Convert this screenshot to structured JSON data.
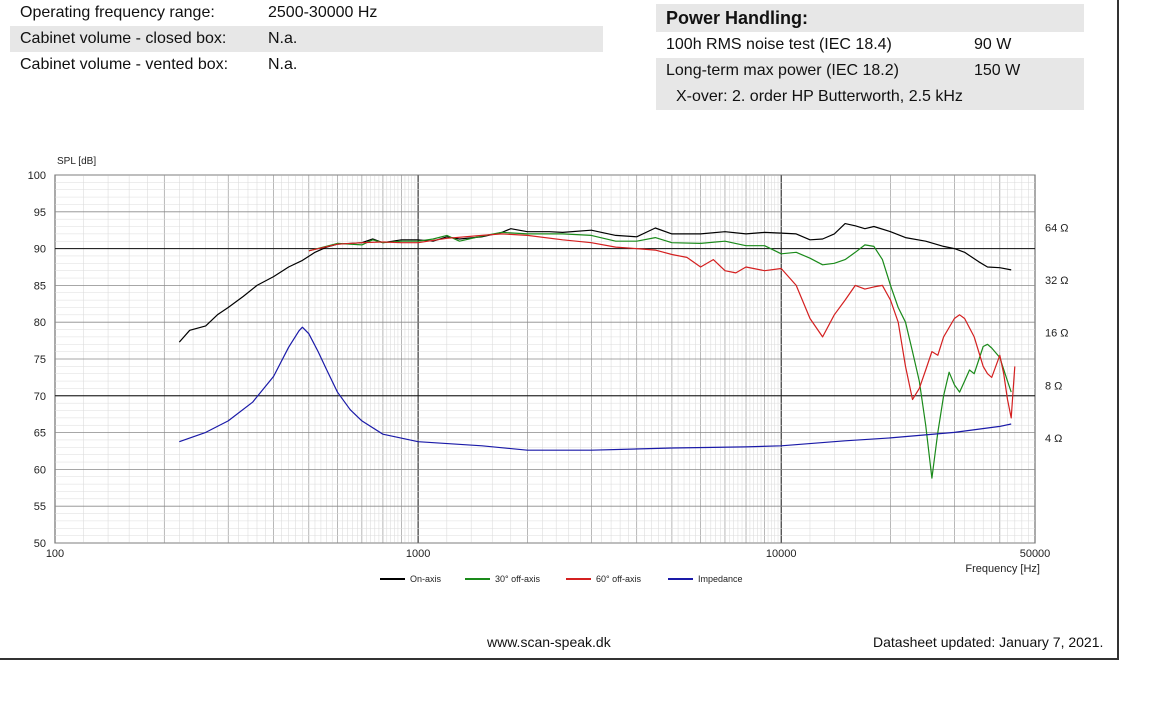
{
  "specs_left": [
    {
      "label": "Operating frequency range:",
      "value": "2500-30000 Hz"
    },
    {
      "label": "Cabinet volume - closed box:",
      "value": "N.a."
    },
    {
      "label": "Cabinet volume - vented box:",
      "value": "N.a."
    }
  ],
  "power_handling": {
    "title": "Power Handling:",
    "rows": [
      {
        "label": "100h RMS noise test (IEC 18.4)",
        "value": "90 W"
      },
      {
        "label": "Long-term max power (IEC 18.2)",
        "value": "150 W"
      }
    ],
    "note": "X-over: 2. order HP Butterworth, 2.5 kHz"
  },
  "chart_data": {
    "type": "line",
    "xscale": "log",
    "xlim": [
      100,
      50000
    ],
    "ylim": [
      50,
      100
    ],
    "y2lim": [
      1,
      128
    ],
    "y2scale": "log2",
    "xlabel": "Frequency [Hz]",
    "ylabel": "SPL [dB]",
    "xticks": [
      "100",
      "1000",
      "10000",
      "50000"
    ],
    "yticks": [
      "50",
      "55",
      "60",
      "65",
      "70",
      "75",
      "80",
      "85",
      "90",
      "95",
      "100"
    ],
    "y2ticks": [
      "4 Ω",
      "8 Ω",
      "16 Ω",
      "32 Ω",
      "64 Ω"
    ],
    "grid": true,
    "legend_position": "bottom",
    "series": [
      {
        "name": "On-axis",
        "color": "#000000",
        "axis": "left",
        "points": [
          [
            220,
            77.3
          ],
          [
            235,
            78.9
          ],
          [
            260,
            79.5
          ],
          [
            280,
            81
          ],
          [
            300,
            82
          ],
          [
            330,
            83.5
          ],
          [
            360,
            85
          ],
          [
            400,
            86.2
          ],
          [
            440,
            87.5
          ],
          [
            480,
            88.4
          ],
          [
            520,
            89.5
          ],
          [
            560,
            90.2
          ],
          [
            600,
            90.6
          ],
          [
            700,
            90.8
          ],
          [
            750,
            91.3
          ],
          [
            800,
            90.8
          ],
          [
            900,
            91.2
          ],
          [
            1000,
            91.2
          ],
          [
            1100,
            91
          ],
          [
            1200,
            91.6
          ],
          [
            1300,
            91.3
          ],
          [
            1500,
            91.6
          ],
          [
            1700,
            92.2
          ],
          [
            1800,
            92.7
          ],
          [
            2000,
            92.3
          ],
          [
            2300,
            92.3
          ],
          [
            2500,
            92.2
          ],
          [
            3000,
            92.5
          ],
          [
            3500,
            91.8
          ],
          [
            4000,
            91.6
          ],
          [
            4500,
            92.8
          ],
          [
            5000,
            92
          ],
          [
            6000,
            92
          ],
          [
            7000,
            92.3
          ],
          [
            8000,
            92
          ],
          [
            9000,
            92.2
          ],
          [
            10000,
            92.1
          ],
          [
            11000,
            92
          ],
          [
            12000,
            91.2
          ],
          [
            13000,
            91.3
          ],
          [
            14000,
            92
          ],
          [
            15000,
            93.4
          ],
          [
            16000,
            93.1
          ],
          [
            17000,
            92.7
          ],
          [
            18000,
            93
          ],
          [
            20000,
            92.3
          ],
          [
            22000,
            91.5
          ],
          [
            25000,
            91
          ],
          [
            28000,
            90.3
          ],
          [
            30000,
            90
          ],
          [
            32000,
            89.5
          ],
          [
            35000,
            88.2
          ],
          [
            37000,
            87.5
          ],
          [
            40000,
            87.4
          ],
          [
            43000,
            87.1
          ]
        ]
      },
      {
        "name": "30° off-axis",
        "color": "#1a8a1a",
        "axis": "left",
        "points": [
          [
            500,
            89.7
          ],
          [
            600,
            90.7
          ],
          [
            700,
            90.5
          ],
          [
            750,
            91.2
          ],
          [
            800,
            90.8
          ],
          [
            900,
            91
          ],
          [
            1000,
            91
          ],
          [
            1100,
            91.3
          ],
          [
            1200,
            91.8
          ],
          [
            1300,
            91
          ],
          [
            1500,
            91.7
          ],
          [
            1700,
            92.2
          ],
          [
            2000,
            92
          ],
          [
            2500,
            92
          ],
          [
            3000,
            91.8
          ],
          [
            3500,
            91
          ],
          [
            4000,
            91
          ],
          [
            4500,
            91.5
          ],
          [
            5000,
            90.8
          ],
          [
            6000,
            90.7
          ],
          [
            7000,
            91
          ],
          [
            8000,
            90.4
          ],
          [
            9000,
            90.4
          ],
          [
            10000,
            89.3
          ],
          [
            11000,
            89.5
          ],
          [
            12000,
            88.7
          ],
          [
            13000,
            87.8
          ],
          [
            14000,
            88
          ],
          [
            15000,
            88.5
          ],
          [
            16000,
            89.5
          ],
          [
            17000,
            90.5
          ],
          [
            18000,
            90.3
          ],
          [
            19000,
            88.5
          ],
          [
            20000,
            85
          ],
          [
            21000,
            82
          ],
          [
            22000,
            80
          ],
          [
            23000,
            76
          ],
          [
            24000,
            72
          ],
          [
            25000,
            66
          ],
          [
            26000,
            58.8
          ],
          [
            27000,
            65
          ],
          [
            28000,
            70
          ],
          [
            29000,
            73.2
          ],
          [
            30000,
            71.5
          ],
          [
            31000,
            70.5
          ],
          [
            32000,
            72
          ],
          [
            33000,
            73.5
          ],
          [
            34000,
            73
          ],
          [
            36000,
            76.7
          ],
          [
            37000,
            77
          ],
          [
            38000,
            76.5
          ],
          [
            40000,
            75.2
          ],
          [
            42000,
            72
          ],
          [
            43000,
            70.5
          ]
        ]
      },
      {
        "name": "60° off-axis",
        "color": "#d42020",
        "axis": "left",
        "points": [
          [
            500,
            89.7
          ],
          [
            600,
            90.6
          ],
          [
            700,
            90.8
          ],
          [
            800,
            90.9
          ],
          [
            900,
            90.8
          ],
          [
            1000,
            90.8
          ],
          [
            1200,
            91.4
          ],
          [
            1500,
            91.8
          ],
          [
            1700,
            92
          ],
          [
            2000,
            91.8
          ],
          [
            2500,
            91.2
          ],
          [
            3000,
            90.8
          ],
          [
            3500,
            90.2
          ],
          [
            4000,
            90
          ],
          [
            4500,
            89.8
          ],
          [
            5000,
            89.2
          ],
          [
            5500,
            88.8
          ],
          [
            6000,
            87.5
          ],
          [
            6500,
            88.5
          ],
          [
            7000,
            87
          ],
          [
            7500,
            86.7
          ],
          [
            8000,
            87.5
          ],
          [
            9000,
            87
          ],
          [
            10000,
            87.3
          ],
          [
            11000,
            85
          ],
          [
            12000,
            80.5
          ],
          [
            13000,
            78
          ],
          [
            14000,
            81
          ],
          [
            15000,
            83
          ],
          [
            16000,
            85
          ],
          [
            17000,
            84.5
          ],
          [
            18000,
            84.8
          ],
          [
            19000,
            85
          ],
          [
            20000,
            83
          ],
          [
            21000,
            80
          ],
          [
            22000,
            74
          ],
          [
            23000,
            69.5
          ],
          [
            24000,
            71
          ],
          [
            25000,
            73.5
          ],
          [
            26000,
            76
          ],
          [
            27000,
            75.5
          ],
          [
            28000,
            78
          ],
          [
            30000,
            80.5
          ],
          [
            31000,
            81
          ],
          [
            32000,
            80.5
          ],
          [
            34000,
            78
          ],
          [
            36000,
            74
          ],
          [
            37000,
            73
          ],
          [
            38000,
            72.5
          ],
          [
            40000,
            75.5
          ],
          [
            41000,
            73
          ],
          [
            42000,
            69.5
          ],
          [
            43000,
            67
          ],
          [
            44000,
            74
          ]
        ]
      },
      {
        "name": "Impedance",
        "color": "#1a1aa8",
        "axis": "right",
        "points": [
          [
            220,
            3.8
          ],
          [
            260,
            4.3
          ],
          [
            300,
            5.0
          ],
          [
            350,
            6.4
          ],
          [
            400,
            9.0
          ],
          [
            440,
            13.2
          ],
          [
            470,
            16.4
          ],
          [
            480,
            17.2
          ],
          [
            500,
            15.8
          ],
          [
            530,
            12.5
          ],
          [
            560,
            9.8
          ],
          [
            600,
            7.3
          ],
          [
            650,
            5.8
          ],
          [
            700,
            5.0
          ],
          [
            800,
            4.2
          ],
          [
            1000,
            3.8
          ],
          [
            1500,
            3.6
          ],
          [
            2000,
            3.4
          ],
          [
            3000,
            3.4
          ],
          [
            5000,
            3.5
          ],
          [
            8000,
            3.55
          ],
          [
            10000,
            3.6
          ],
          [
            15000,
            3.85
          ],
          [
            20000,
            4.0
          ],
          [
            30000,
            4.3
          ],
          [
            40000,
            4.65
          ],
          [
            43000,
            4.8
          ]
        ]
      }
    ]
  },
  "footer": {
    "website": "www.scan-speak.dk",
    "updated": "Datasheet updated: January 7, 2021."
  }
}
